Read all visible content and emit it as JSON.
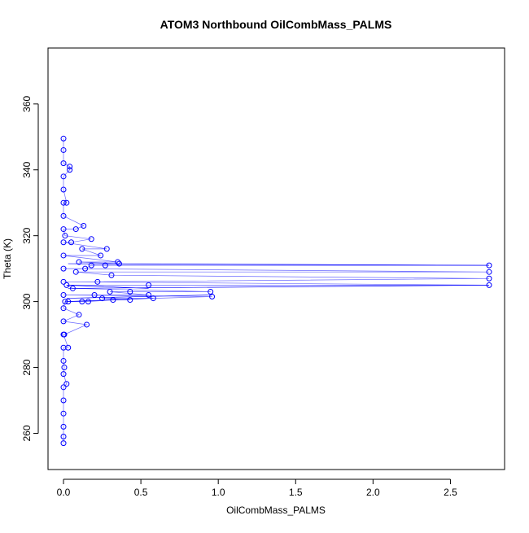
{
  "chart_data": {
    "type": "scatter",
    "title": "ATOM3 Northbound OilCombMass_PALMS",
    "xlabel": "OilCombMass_PALMS",
    "ylabel": "Theta (K)",
    "xlim": [
      -0.1,
      2.85
    ],
    "ylim": [
      249,
      377
    ],
    "xticks": [
      0.0,
      0.5,
      1.0,
      1.5,
      2.0,
      2.5
    ],
    "xtick_labels": [
      "0.0",
      "0.5",
      "1.0",
      "1.5",
      "2.0",
      "2.5"
    ],
    "yticks": [
      260,
      280,
      300,
      320,
      340,
      360
    ],
    "ytick_labels": [
      "260",
      "280",
      "300",
      "320",
      "340",
      "360"
    ],
    "grid": false,
    "legend": "none",
    "marker": "open-circle",
    "connected_lines": true,
    "series": [
      {
        "color": "#0000ff",
        "points": [
          [
            0.0,
            257
          ],
          [
            0.0,
            259
          ],
          [
            0.0,
            262
          ],
          [
            0.0,
            266
          ],
          [
            0.0,
            270
          ],
          [
            0.0,
            274
          ],
          [
            0.0,
            278
          ],
          [
            0.0,
            282
          ],
          [
            0.0,
            286
          ],
          [
            0.0,
            290
          ],
          [
            0.0,
            294
          ],
          [
            0.0,
            298
          ],
          [
            0.0,
            302
          ],
          [
            0.0,
            306
          ],
          [
            0.0,
            310
          ],
          [
            0.0,
            314
          ],
          [
            0.0,
            318
          ],
          [
            0.0,
            322
          ],
          [
            0.0,
            326
          ],
          [
            0.0,
            330
          ],
          [
            0.0,
            334
          ],
          [
            0.0,
            338
          ],
          [
            0.0,
            342
          ],
          [
            0.0,
            346
          ],
          [
            0.0,
            349.5
          ],
          [
            0.005,
            280
          ],
          [
            0.005,
            290
          ],
          [
            0.01,
            300
          ],
          [
            0.01,
            320
          ],
          [
            0.02,
            275
          ],
          [
            0.02,
            305
          ],
          [
            0.02,
            330
          ],
          [
            0.03,
            286
          ],
          [
            0.03,
            300
          ],
          [
            0.04,
            340
          ],
          [
            0.04,
            341
          ],
          [
            0.05,
            318
          ],
          [
            0.06,
            304
          ],
          [
            0.08,
            309
          ],
          [
            0.08,
            322
          ],
          [
            0.1,
            296
          ],
          [
            0.1,
            312
          ],
          [
            0.12,
            300
          ],
          [
            0.12,
            316
          ],
          [
            0.13,
            323
          ],
          [
            0.14,
            310
          ],
          [
            0.15,
            293
          ],
          [
            0.16,
            300
          ],
          [
            0.18,
            311
          ],
          [
            0.18,
            319
          ],
          [
            0.2,
            302
          ],
          [
            0.22,
            306
          ],
          [
            0.24,
            314
          ],
          [
            0.25,
            301
          ],
          [
            0.27,
            311
          ],
          [
            0.28,
            316
          ],
          [
            0.3,
            303
          ],
          [
            0.31,
            308
          ],
          [
            0.32,
            300.5
          ],
          [
            0.35,
            312
          ],
          [
            0.36,
            311.5
          ],
          [
            0.43,
            303
          ],
          [
            0.43,
            300.5
          ],
          [
            0.55,
            305
          ],
          [
            0.55,
            302
          ],
          [
            0.58,
            301
          ],
          [
            0.95,
            303
          ],
          [
            0.96,
            301.5
          ],
          [
            2.75,
            311
          ],
          [
            2.75,
            309
          ],
          [
            2.75,
            307
          ],
          [
            2.75,
            305
          ]
        ],
        "line_segments": [
          [
            [
              0.03,
              311.5
            ],
            [
              2.75,
              311
            ]
          ],
          [
            [
              0.03,
              304
            ],
            [
              2.75,
              305
            ]
          ],
          [
            [
              0.02,
              301
            ],
            [
              0.96,
              302
            ]
          ],
          [
            [
              0.02,
              300
            ],
            [
              0.58,
              301
            ]
          ],
          [
            [
              0.02,
              305
            ],
            [
              0.55,
              304
            ]
          ]
        ]
      }
    ]
  }
}
